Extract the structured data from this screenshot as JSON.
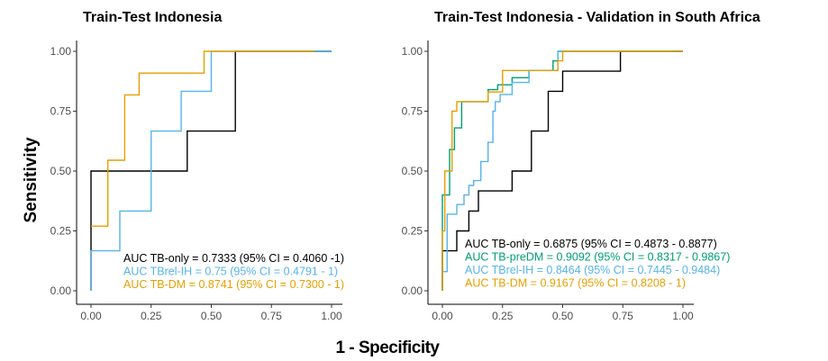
{
  "ylabel": "Sensitivity",
  "xlabel": "1 - Specificity",
  "chart_data": [
    {
      "type": "line",
      "title": "Train-Test Indonesia",
      "xlim": [
        0,
        1
      ],
      "ylim": [
        0,
        1
      ],
      "x_ticks": [
        "0.00",
        "0.25",
        "0.50",
        "0.75",
        "1.00"
      ],
      "y_ticks": [
        "0.00",
        "0.25",
        "0.50",
        "0.75",
        "1.00"
      ],
      "grid": false,
      "series": [
        {
          "color": "#000000",
          "x": [
            0,
            0,
            0,
            0.4,
            0.4,
            0.6,
            0.6,
            1.0
          ],
          "y": [
            0,
            0.167,
            0.5,
            0.5,
            0.667,
            0.667,
            1.0,
            1.0
          ]
        },
        {
          "color": "#56b4e9",
          "x": [
            0,
            0,
            0.12,
            0.12,
            0.25,
            0.25,
            0.375,
            0.375,
            0.5,
            0.5,
            1.0
          ],
          "y": [
            0,
            0.167,
            0.167,
            0.333,
            0.333,
            0.667,
            0.667,
            0.833,
            0.833,
            1.0,
            1.0
          ]
        },
        {
          "color": "#e69f00",
          "x": [
            0,
            0,
            0.07,
            0.07,
            0.14,
            0.14,
            0.2,
            0.2,
            0.25,
            0.25,
            0.32,
            0.32,
            0.47,
            0.47,
            0.93
          ],
          "y": [
            0.27,
            0.27,
            0.27,
            0.545,
            0.545,
            0.818,
            0.818,
            0.909,
            0.909,
            0.909,
            0.909,
            0.909,
            0.909,
            1.0,
            1.0
          ]
        }
      ],
      "annotations": [
        {
          "text": "AUC TB-only = 0.7333 (95% CI = 0.4060 -1)",
          "color": "#000000"
        },
        {
          "text": "AUC TBrel-IH = 0.75 (95% CI = 0.4791 - 1)",
          "color": "#56b4e9"
        },
        {
          "text": "AUC TB-DM = 0.8741 (95% CI = 0.7300 - 1)",
          "color": "#e69f00"
        }
      ]
    },
    {
      "type": "line",
      "title": "Train-Test Indonesia - Validation in South Africa",
      "xlim": [
        0,
        1
      ],
      "ylim": [
        0,
        1
      ],
      "x_ticks": [
        "0.00",
        "0.25",
        "0.50",
        "0.75",
        "1.00"
      ],
      "y_ticks": [
        "0.00",
        "0.25",
        "0.50",
        "0.75",
        "1.00"
      ],
      "grid": false,
      "series": [
        {
          "color": "#000000",
          "x": [
            0,
            0,
            0.06,
            0.06,
            0.11,
            0.11,
            0.15,
            0.15,
            0.19,
            0.19,
            0.29,
            0.29,
            0.37,
            0.37,
            0.44,
            0.44,
            0.5,
            0.5,
            0.74,
            0.74,
            1.0
          ],
          "y": [
            0,
            0.167,
            0.167,
            0.25,
            0.25,
            0.333,
            0.333,
            0.417,
            0.417,
            0.417,
            0.417,
            0.5,
            0.5,
            0.667,
            0.667,
            0.833,
            0.833,
            0.917,
            0.917,
            1.0,
            1.0
          ]
        },
        {
          "color": "#009e73",
          "x": [
            0,
            0,
            0.03,
            0.03,
            0.05,
            0.05,
            0.08,
            0.08,
            0.14,
            0.14,
            0.19,
            0.19,
            0.23,
            0.23,
            0.29,
            0.29,
            0.36,
            0.36,
            0.46,
            0.46,
            0.48,
            0.48,
            1.0
          ],
          "y": [
            0,
            0.4,
            0.4,
            0.59,
            0.59,
            0.68,
            0.68,
            0.79,
            0.79,
            0.79,
            0.79,
            0.84,
            0.84,
            0.86,
            0.86,
            0.89,
            0.89,
            0.92,
            0.92,
            0.96,
            0.96,
            1.0,
            1.0
          ]
        },
        {
          "color": "#56b4e9",
          "x": [
            0,
            0,
            0.02,
            0.02,
            0.06,
            0.06,
            0.09,
            0.09,
            0.11,
            0.11,
            0.13,
            0.13,
            0.16,
            0.16,
            0.19,
            0.19,
            0.21,
            0.21,
            0.22,
            0.22,
            0.24,
            0.24,
            0.29,
            0.29,
            0.36,
            0.36,
            0.48,
            0.48,
            0.96
          ],
          "y": [
            0,
            0.08,
            0.08,
            0.32,
            0.32,
            0.36,
            0.36,
            0.4,
            0.4,
            0.44,
            0.44,
            0.46,
            0.46,
            0.54,
            0.54,
            0.62,
            0.62,
            0.75,
            0.75,
            0.79,
            0.79,
            0.82,
            0.82,
            0.87,
            0.87,
            0.92,
            0.92,
            1.0,
            1.0
          ]
        },
        {
          "color": "#e69f00",
          "x": [
            0,
            0,
            0.01,
            0.01,
            0.04,
            0.04,
            0.06,
            0.06,
            0.11,
            0.11,
            0.19,
            0.19,
            0.25,
            0.25,
            0.34,
            0.34,
            0.48,
            0.48,
            0.5,
            0.5,
            1.0
          ],
          "y": [
            0,
            0.25,
            0.25,
            0.5,
            0.5,
            0.75,
            0.75,
            0.79,
            0.79,
            0.79,
            0.79,
            0.83,
            0.83,
            0.92,
            0.92,
            0.92,
            0.92,
            0.96,
            0.96,
            1.0,
            1.0
          ]
        }
      ],
      "annotations": [
        {
          "text": "AUC TB-only = 0.6875 (95% CI = 0.4873 - 0.8877)",
          "color": "#000000"
        },
        {
          "text": "AUC TB-preDM = 0.9092 (95% CI = 0.8317 - 0.9867)",
          "color": "#009e73"
        },
        {
          "text": "AUC TBrel-IH = 0.8464 (95% CI = 0.7445 - 0.9484)",
          "color": "#56b4e9"
        },
        {
          "text": "AUC TB-DM = 0.9167 (95% CI = 0.8208 - 1)",
          "color": "#e69f00"
        }
      ]
    }
  ]
}
